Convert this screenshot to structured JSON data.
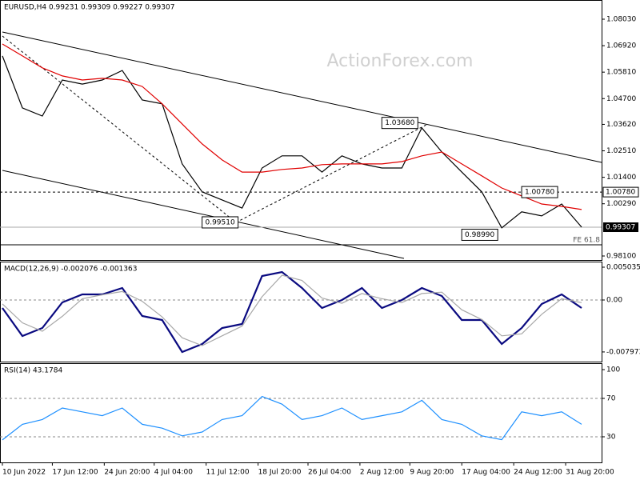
{
  "chart_data": [
    {
      "type": "line",
      "title": "EURUSD,H4  0.99231 0.99309 0.99227 0.99307",
      "watermark": "ActionForex.com",
      "xlim": [
        0,
        30
      ],
      "ylim": [
        0.97932,
        1.08835
      ],
      "yticks": [
        {
          "value": 1.0803,
          "label": "1.08030"
        },
        {
          "value": 1.0692,
          "label": "1.06920"
        },
        {
          "value": 1.0581,
          "label": "1.05810"
        },
        {
          "value": 1.047,
          "label": "1.04700"
        },
        {
          "value": 1.0362,
          "label": "1.03620"
        },
        {
          "value": 1.0251,
          "label": "1.02510"
        },
        {
          "value": 1.014,
          "label": "1.01400"
        },
        {
          "value": 1.0029,
          "label": "1.00290"
        },
        {
          "value": 0.981,
          "label": "0.98100"
        }
      ],
      "series": [
        {
          "color": "#000000",
          "values": [
            1.0649,
            1.0431,
            1.0397,
            1.0548,
            1.0531,
            1.0548,
            1.0588,
            1.0464,
            1.0448,
            1.0196,
            1.0079,
            1.0045,
            1.0011,
            1.0179,
            1.023,
            1.023,
            1.0162,
            1.023,
            1.0196,
            1.0179,
            1.0179,
            1.0347,
            1.0246,
            1.0162,
            1.0079,
            0.9928,
            0.9995,
            0.9978,
            1.0028,
            0.9931
          ]
        },
        {
          "color": "#e00000",
          "values": [
            1.0699,
            1.0649,
            1.0599,
            1.0565,
            1.0548,
            1.0555,
            1.0548,
            1.0521,
            1.0448,
            1.0364,
            1.028,
            1.0213,
            1.0162,
            1.0162,
            1.0173,
            1.0179,
            1.0193,
            1.0196,
            1.0196,
            1.0196,
            1.0206,
            1.023,
            1.0246,
            1.0196,
            1.0146,
            1.0095,
            1.0062,
            1.0028,
            1.0018,
            1.0005
          ]
        }
      ],
      "annotations": [
        {
          "text": "1.03680",
          "value": 1.0368,
          "index": 21
        },
        {
          "text": "0.99510",
          "value": 0.9951,
          "index": 12
        },
        {
          "text": "1.00780",
          "value": 1.0078,
          "index": 28
        },
        {
          "text": "0.98990",
          "value": 0.9899,
          "index": 25
        }
      ],
      "level": {
        "value": 1.0078,
        "label": "1.00780"
      },
      "last_price": {
        "value": 0.99307,
        "label": "0.99307"
      },
      "fe_level": {
        "value": 0.9857,
        "text": "FE 61.8"
      }
    },
    {
      "type": "line",
      "title": "MACD(12,26,9) -0.002076 -0.001363",
      "xlim": [
        0,
        30
      ],
      "ylim": [
        -0.009456,
        0.005895
      ],
      "yticks": [
        0.005035,
        {
          "value": 0,
          "label": "0.00"
        },
        -0.007973
      ],
      "levels": [
        0
      ],
      "series": [
        {
          "color": "#0a0a80",
          "values": [
            -0.00123,
            -0.00553,
            -0.0043,
            -0.00037,
            0.00086,
            0.00086,
            0.00184,
            -0.00246,
            -0.00307,
            -0.00798,
            -0.00675,
            -0.0043,
            -0.00368,
            0.00368,
            0.0043,
            0.00184,
            -0.00123,
            0,
            0.00184,
            -0.00123,
            0,
            0.00184,
            0.00061,
            -0.00307,
            -0.00307,
            -0.00675,
            -0.0043,
            -0.00061,
            0.00086,
            -0.00123
          ]
        },
        {
          "color": "#a8a8a8",
          "values": [
            -0.0006,
            -0.0035,
            -0.0048,
            -0.0025,
            0.0002,
            0.0008,
            0.0013,
            -0.0002,
            -0.0026,
            -0.0058,
            -0.007,
            -0.0055,
            -0.004,
            0.0005,
            0.0038,
            0.003,
            0.0003,
            -0.0005,
            0.001,
            0.0002,
            -0.0004,
            0.001,
            0.0012,
            -0.0015,
            -0.003,
            -0.0055,
            -0.0052,
            -0.0022,
            0.0002,
            -0.0004
          ]
        }
      ]
    },
    {
      "type": "line",
      "title": "RSI(14) 43.1784",
      "xlim": [
        0,
        30
      ],
      "ylim": [
        3.3,
        106.7
      ],
      "yticks": [
        100,
        70,
        30
      ],
      "levels": [
        70,
        30
      ],
      "series": [
        {
          "color": "#1e90ff",
          "values": [
            26.7,
            43,
            48,
            60,
            56,
            52,
            60,
            43,
            39,
            31,
            35,
            48,
            52,
            72,
            64,
            48,
            52,
            60,
            48,
            52,
            56,
            68,
            48,
            43,
            31,
            27,
            56,
            52,
            56,
            43
          ]
        }
      ],
      "xticks": [
        {
          "value": 0,
          "label": "10 Jun 2022"
        },
        {
          "value": 2.5,
          "label": "17 Jun 12:00"
        },
        {
          "value": 5.1,
          "label": "24 Jun 20:00"
        },
        {
          "value": 7.6,
          "label": "4 Jul 04:00"
        },
        {
          "value": 10.2,
          "label": "11 Jul 12:00"
        },
        {
          "value": 12.8,
          "label": "18 Jul 20:00"
        },
        {
          "value": 15.3,
          "label": "26 Jul 04:00"
        },
        {
          "value": 17.9,
          "label": "2 Aug 12:00"
        },
        {
          "value": 20.4,
          "label": "9 Aug 20:00"
        },
        {
          "value": 23,
          "label": "17 Aug 04:00"
        },
        {
          "value": 25.6,
          "label": "24 Aug 12:00"
        },
        {
          "value": 28.2,
          "label": "31 Aug 20:00"
        }
      ]
    }
  ]
}
